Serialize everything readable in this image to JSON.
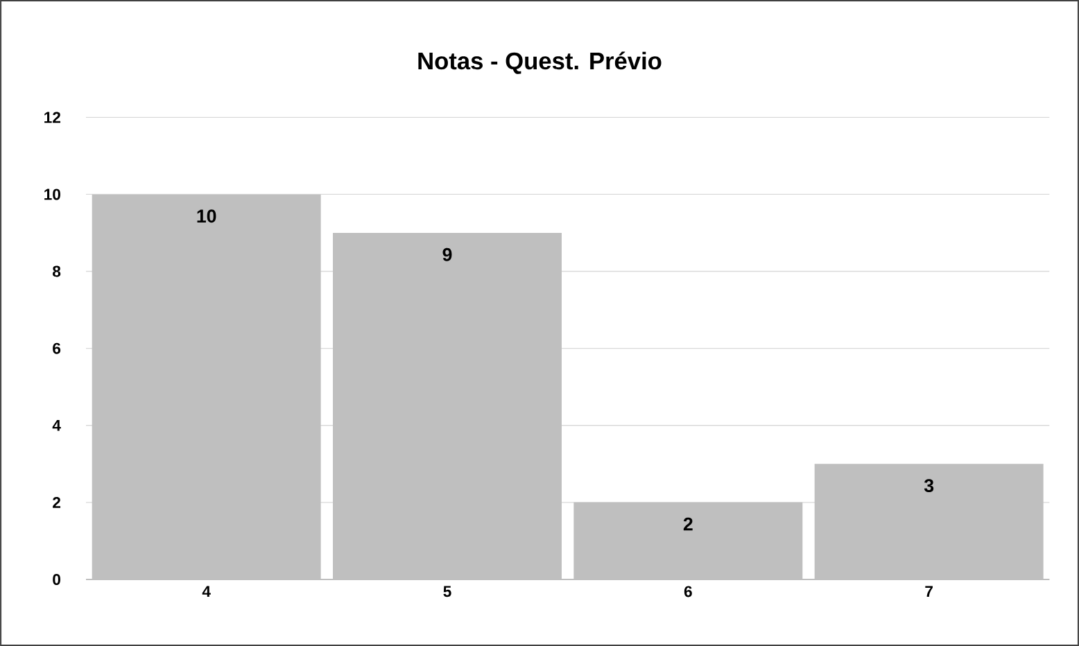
{
  "chart_data": {
    "type": "bar",
    "title": "Notas - Quest. Prévio",
    "categories": [
      "4",
      "5",
      "6",
      "7"
    ],
    "values": [
      10,
      9,
      2,
      3
    ],
    "color": "#bfbfbf",
    "ylim": [
      0,
      12
    ],
    "yticks": [
      0,
      2,
      4,
      6,
      8,
      10,
      12
    ],
    "grid": "y",
    "data_labels": true
  }
}
